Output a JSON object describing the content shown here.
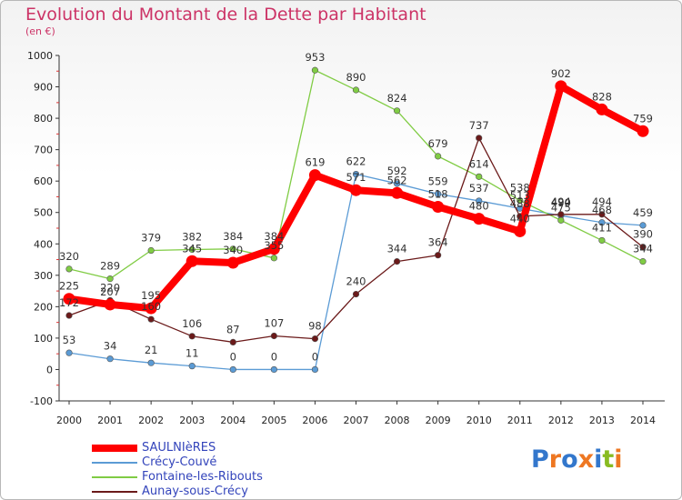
{
  "title": "Evolution du Montant de la Dette par Habitant",
  "unit_label": "(en €)",
  "logo_text": "Proxiti",
  "chart_data": {
    "type": "line",
    "title": "Evolution du Montant de la Dette par Habitant",
    "subtitle": "(en €)",
    "x": [
      "2000",
      "2001",
      "2002",
      "2003",
      "2004",
      "2005",
      "2006",
      "2007",
      "2008",
      "2009",
      "2010",
      "2011",
      "2012",
      "2013",
      "2014"
    ],
    "ylim": [
      -100,
      1000
    ],
    "yticks": [
      -100,
      0,
      100,
      200,
      300,
      400,
      500,
      600,
      700,
      800,
      900,
      1000
    ],
    "grid": false,
    "legend_position": "bottom-left",
    "series": [
      {
        "name": "SAULNIèRES",
        "color": "#ff0000",
        "values": [
          225,
          207,
          195,
          345,
          340,
          384,
          619,
          571,
          562,
          518,
          480,
          440,
          902,
          828,
          759
        ]
      },
      {
        "name": "Crécy-Couvé",
        "color": "#5b9bd5",
        "values": [
          53,
          34,
          21,
          11,
          0,
          0,
          0,
          622,
          592,
          559,
          537,
          513,
          490,
          468,
          459
        ]
      },
      {
        "name": "Fontaine-les-Ribouts",
        "color": "#80cc44",
        "values": [
          320,
          289,
          379,
          382,
          384,
          355,
          953,
          890,
          824,
          679,
          614,
          538,
          475,
          411,
          344
        ]
      },
      {
        "name": "Aunay-sous-Crécy",
        "color": "#6b1a1a",
        "values": [
          172,
          220,
          160,
          106,
          87,
          107,
          98,
          240,
          344,
          364,
          737,
          488,
          494,
          494,
          390
        ]
      }
    ]
  }
}
